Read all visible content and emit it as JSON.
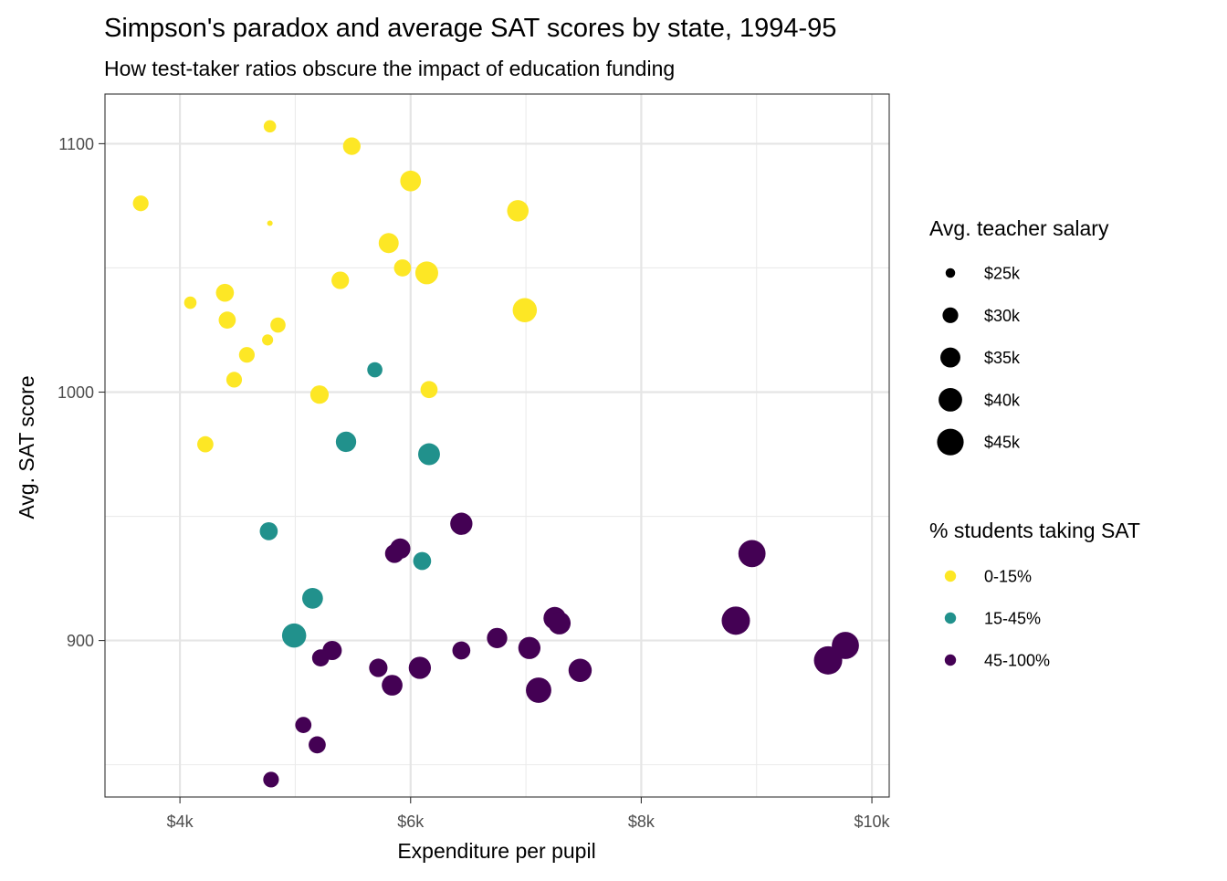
{
  "chart_data": {
    "type": "scatter",
    "title": "Simpson's paradox and average SAT scores by state, 1994-95",
    "subtitle": "How test-taker ratios obscure the impact of education funding",
    "xlabel": "Expenditure per pupil",
    "ylabel": "Avg. SAT score",
    "xlim": [
      3.35,
      10.15
    ],
    "ylim": [
      837,
      1120
    ],
    "x_unit": "$ thousands",
    "x_ticks": [
      4,
      6,
      8,
      10
    ],
    "x_tick_labels": [
      "$4k",
      "$6k",
      "$8k",
      "$10k"
    ],
    "x_minor_ticks": [
      5,
      7,
      9
    ],
    "y_ticks": [
      900,
      1000,
      1100
    ],
    "y_tick_labels": [
      "900",
      "1000",
      "1100"
    ],
    "y_minor_ticks": [
      850,
      950,
      1050
    ],
    "grid": true,
    "legend_position": "right",
    "size_legend": {
      "title": "Avg. teacher salary",
      "entries": [
        {
          "label": "$25k",
          "salary": 25
        },
        {
          "label": "$30k",
          "salary": 30
        },
        {
          "label": "$35k",
          "salary": 35
        },
        {
          "label": "$40k",
          "salary": 40
        },
        {
          "label": "$45k",
          "salary": 45
        }
      ]
    },
    "color_legend": {
      "title": "% students taking SAT",
      "entries": [
        {
          "label": "0-15%",
          "color": "#fde725"
        },
        {
          "label": "15-45%",
          "color": "#21918c"
        },
        {
          "label": "45-100%",
          "color": "#440154"
        }
      ]
    },
    "series": [
      {
        "name": "0-15%",
        "color": "#fde725",
        "points": [
          {
            "x": 3.66,
            "y": 1076,
            "salary": 30.0
          },
          {
            "x": 4.09,
            "y": 1036,
            "salary": 27.0
          },
          {
            "x": 4.39,
            "y": 1040,
            "salary": 32.5
          },
          {
            "x": 4.41,
            "y": 1029,
            "salary": 31.5
          },
          {
            "x": 4.22,
            "y": 979,
            "salary": 30.5
          },
          {
            "x": 4.47,
            "y": 1005,
            "salary": 30.0
          },
          {
            "x": 4.58,
            "y": 1015,
            "salary": 30.0
          },
          {
            "x": 4.78,
            "y": 1107,
            "salary": 27.0
          },
          {
            "x": 4.78,
            "y": 1068,
            "salary": 23.0
          },
          {
            "x": 4.76,
            "y": 1021,
            "salary": 26.0
          },
          {
            "x": 4.85,
            "y": 1027,
            "salary": 29.5
          },
          {
            "x": 5.21,
            "y": 999,
            "salary": 33.0
          },
          {
            "x": 5.39,
            "y": 1045,
            "salary": 32.0
          },
          {
            "x": 5.49,
            "y": 1099,
            "salary": 32.0
          },
          {
            "x": 5.81,
            "y": 1060,
            "salary": 35.0
          },
          {
            "x": 5.93,
            "y": 1050,
            "salary": 31.5
          },
          {
            "x": 6.0,
            "y": 1085,
            "salary": 36.0
          },
          {
            "x": 6.14,
            "y": 1048,
            "salary": 39.0
          },
          {
            "x": 6.16,
            "y": 1001,
            "salary": 31.5
          },
          {
            "x": 6.93,
            "y": 1073,
            "salary": 37.0
          },
          {
            "x": 6.99,
            "y": 1033,
            "salary": 41.0
          }
        ]
      },
      {
        "name": "15-45%",
        "color": "#21918c",
        "points": [
          {
            "x": 5.69,
            "y": 1009,
            "salary": 29.5
          },
          {
            "x": 5.44,
            "y": 980,
            "salary": 35.5
          },
          {
            "x": 6.16,
            "y": 975,
            "salary": 37.5
          },
          {
            "x": 4.77,
            "y": 944,
            "salary": 32.5
          },
          {
            "x": 6.1,
            "y": 932,
            "salary": 32.5
          },
          {
            "x": 5.15,
            "y": 917,
            "salary": 36.0
          },
          {
            "x": 4.99,
            "y": 902,
            "salary": 41.0
          }
        ]
      },
      {
        "name": "45-100%",
        "color": "#440154",
        "points": [
          {
            "x": 6.44,
            "y": 947,
            "salary": 38.0
          },
          {
            "x": 5.91,
            "y": 937,
            "salary": 35.5
          },
          {
            "x": 5.86,
            "y": 935,
            "salary": 33.5
          },
          {
            "x": 8.96,
            "y": 935,
            "salary": 46.0
          },
          {
            "x": 7.25,
            "y": 909,
            "salary": 38.5
          },
          {
            "x": 7.29,
            "y": 907,
            "salary": 38.5
          },
          {
            "x": 8.82,
            "y": 908,
            "salary": 48.0
          },
          {
            "x": 6.75,
            "y": 901,
            "salary": 35.5
          },
          {
            "x": 7.03,
            "y": 897,
            "salary": 38.0
          },
          {
            "x": 9.77,
            "y": 898,
            "salary": 46.0
          },
          {
            "x": 5.32,
            "y": 896,
            "salary": 34.0
          },
          {
            "x": 6.44,
            "y": 896,
            "salary": 32.5
          },
          {
            "x": 5.22,
            "y": 893,
            "salary": 31.5
          },
          {
            "x": 9.62,
            "y": 892,
            "salary": 48.0
          },
          {
            "x": 5.72,
            "y": 889,
            "salary": 33.0
          },
          {
            "x": 6.08,
            "y": 889,
            "salary": 38.0
          },
          {
            "x": 7.47,
            "y": 888,
            "salary": 39.5
          },
          {
            "x": 5.84,
            "y": 882,
            "salary": 36.0
          },
          {
            "x": 7.11,
            "y": 880,
            "salary": 43.0
          },
          {
            "x": 5.07,
            "y": 866,
            "salary": 30.5
          },
          {
            "x": 5.19,
            "y": 858,
            "salary": 31.5
          },
          {
            "x": 4.79,
            "y": 844,
            "salary": 30.0
          }
        ]
      }
    ]
  }
}
